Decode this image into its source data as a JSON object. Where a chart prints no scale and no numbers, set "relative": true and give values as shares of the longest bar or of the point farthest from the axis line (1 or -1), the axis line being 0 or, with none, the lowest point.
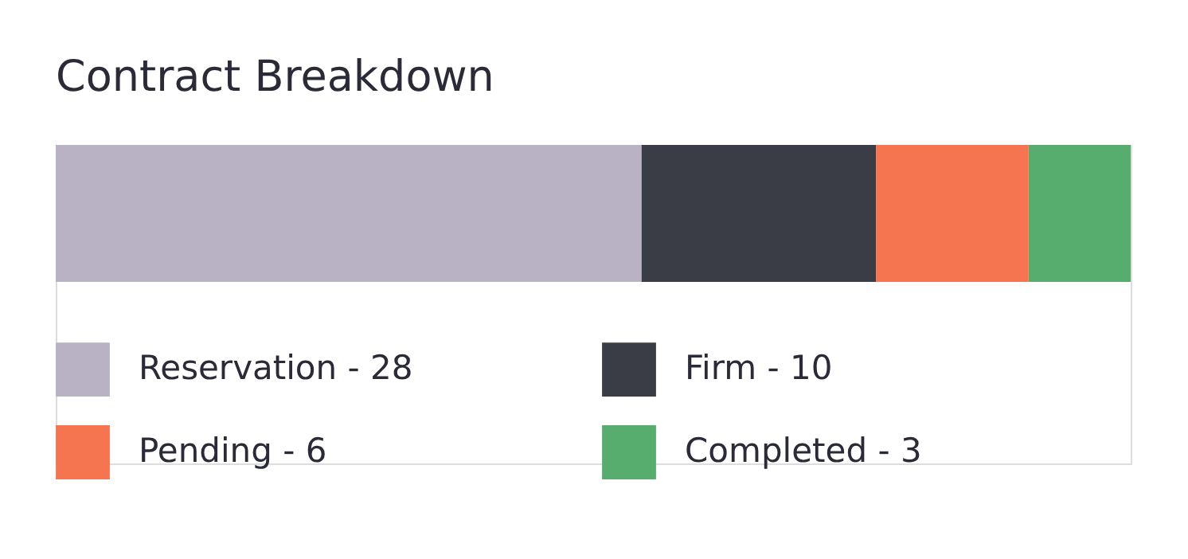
{
  "chart_data": {
    "type": "bar",
    "title": "Contract Breakdown",
    "orientation": "horizontal",
    "stacked": true,
    "relative": true,
    "categories": [
      null
    ],
    "legend": "bottom left",
    "series": [
      {
        "name": "Reservation - 28",
        "color": "#b9b2c4",
        "values": [
          0.545
        ]
      },
      {
        "name": "Firm - 10",
        "color": "#3a3d45",
        "values": [
          0.218
        ]
      },
      {
        "name": "Pending - 6",
        "color": "#f67551",
        "values": [
          0.142
        ]
      },
      {
        "name": "Completed - 3",
        "color": "#56ad6d",
        "values": [
          0.095
        ]
      }
    ]
  }
}
